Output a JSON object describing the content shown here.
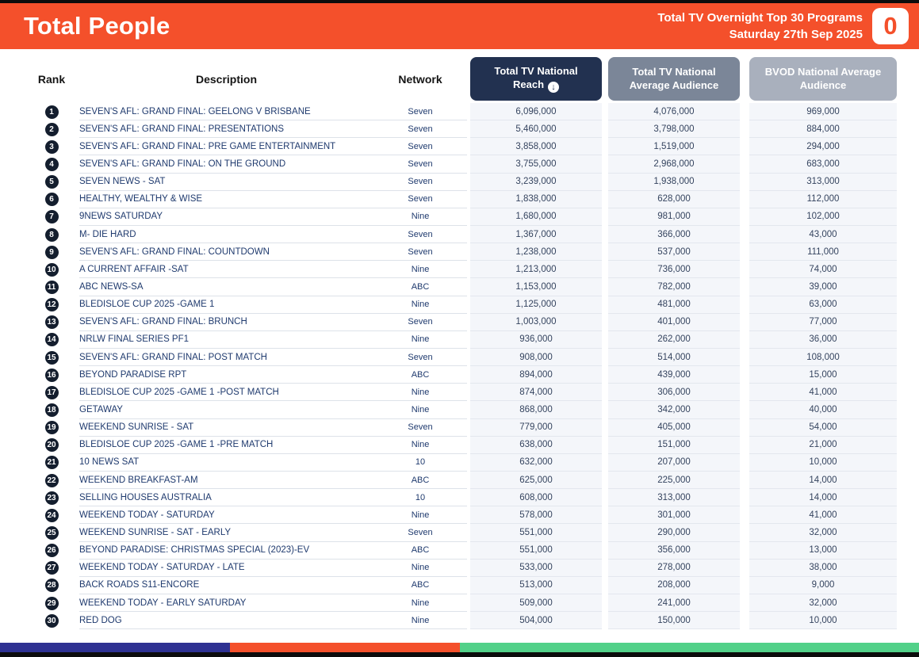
{
  "header": {
    "title": "Total People",
    "report_line1": "Total TV Overnight Top 30 Programs",
    "report_line2": "Saturday 27th Sep 2025",
    "logo_glyph": "0"
  },
  "table": {
    "columns": {
      "rank": "Rank",
      "description": "Description",
      "network": "Network",
      "reach": "Total TV National Reach",
      "avg": "Total TV National Average Audience",
      "bvod": "BVOD National Average Audience"
    },
    "sort_icon_glyph": "↓",
    "rows": [
      {
        "rank": "1",
        "description": "SEVEN'S AFL: GRAND FINAL: GEELONG V BRISBANE",
        "network": "Seven",
        "reach": "6,096,000",
        "avg": "4,076,000",
        "bvod": "969,000"
      },
      {
        "rank": "2",
        "description": "SEVEN'S AFL: GRAND FINAL: PRESENTATIONS",
        "network": "Seven",
        "reach": "5,460,000",
        "avg": "3,798,000",
        "bvod": "884,000"
      },
      {
        "rank": "3",
        "description": "SEVEN'S AFL: GRAND FINAL: PRE GAME ENTERTAINMENT",
        "network": "Seven",
        "reach": "3,858,000",
        "avg": "1,519,000",
        "bvod": "294,000"
      },
      {
        "rank": "4",
        "description": "SEVEN'S AFL: GRAND FINAL: ON THE GROUND",
        "network": "Seven",
        "reach": "3,755,000",
        "avg": "2,968,000",
        "bvod": "683,000"
      },
      {
        "rank": "5",
        "description": "SEVEN NEWS - SAT",
        "network": "Seven",
        "reach": "3,239,000",
        "avg": "1,938,000",
        "bvod": "313,000"
      },
      {
        "rank": "6",
        "description": "HEALTHY, WEALTHY & WISE",
        "network": "Seven",
        "reach": "1,838,000",
        "avg": "628,000",
        "bvod": "112,000"
      },
      {
        "rank": "7",
        "description": "9NEWS SATURDAY",
        "network": "Nine",
        "reach": "1,680,000",
        "avg": "981,000",
        "bvod": "102,000"
      },
      {
        "rank": "8",
        "description": "M- DIE HARD",
        "network": "Seven",
        "reach": "1,367,000",
        "avg": "366,000",
        "bvod": "43,000"
      },
      {
        "rank": "9",
        "description": "SEVEN'S AFL: GRAND FINAL: COUNTDOWN",
        "network": "Seven",
        "reach": "1,238,000",
        "avg": "537,000",
        "bvod": "111,000"
      },
      {
        "rank": "10",
        "description": "A CURRENT AFFAIR -SAT",
        "network": "Nine",
        "reach": "1,213,000",
        "avg": "736,000",
        "bvod": "74,000"
      },
      {
        "rank": "11",
        "description": "ABC NEWS-SA",
        "network": "ABC",
        "reach": "1,153,000",
        "avg": "782,000",
        "bvod": "39,000"
      },
      {
        "rank": "12",
        "description": "BLEDISLOE CUP 2025 -GAME 1",
        "network": "Nine",
        "reach": "1,125,000",
        "avg": "481,000",
        "bvod": "63,000"
      },
      {
        "rank": "13",
        "description": "SEVEN'S AFL: GRAND FINAL: BRUNCH",
        "network": "Seven",
        "reach": "1,003,000",
        "avg": "401,000",
        "bvod": "77,000"
      },
      {
        "rank": "14",
        "description": "NRLW FINAL SERIES PF1",
        "network": "Nine",
        "reach": "936,000",
        "avg": "262,000",
        "bvod": "36,000"
      },
      {
        "rank": "15",
        "description": "SEVEN'S AFL: GRAND FINAL: POST MATCH",
        "network": "Seven",
        "reach": "908,000",
        "avg": "514,000",
        "bvod": "108,000"
      },
      {
        "rank": "16",
        "description": "BEYOND PARADISE RPT",
        "network": "ABC",
        "reach": "894,000",
        "avg": "439,000",
        "bvod": "15,000"
      },
      {
        "rank": "17",
        "description": "BLEDISLOE CUP 2025 -GAME 1 -POST MATCH",
        "network": "Nine",
        "reach": "874,000",
        "avg": "306,000",
        "bvod": "41,000"
      },
      {
        "rank": "18",
        "description": "GETAWAY",
        "network": "Nine",
        "reach": "868,000",
        "avg": "342,000",
        "bvod": "40,000"
      },
      {
        "rank": "19",
        "description": "WEEKEND SUNRISE - SAT",
        "network": "Seven",
        "reach": "779,000",
        "avg": "405,000",
        "bvod": "54,000"
      },
      {
        "rank": "20",
        "description": "BLEDISLOE CUP 2025 -GAME 1 -PRE MATCH",
        "network": "Nine",
        "reach": "638,000",
        "avg": "151,000",
        "bvod": "21,000"
      },
      {
        "rank": "21",
        "description": "10 NEWS SAT",
        "network": "10",
        "reach": "632,000",
        "avg": "207,000",
        "bvod": "10,000"
      },
      {
        "rank": "22",
        "description": "WEEKEND BREAKFAST-AM",
        "network": "ABC",
        "reach": "625,000",
        "avg": "225,000",
        "bvod": "14,000"
      },
      {
        "rank": "23",
        "description": "SELLING HOUSES AUSTRALIA",
        "network": "10",
        "reach": "608,000",
        "avg": "313,000",
        "bvod": "14,000"
      },
      {
        "rank": "24",
        "description": "WEEKEND TODAY - SATURDAY",
        "network": "Nine",
        "reach": "578,000",
        "avg": "301,000",
        "bvod": "41,000"
      },
      {
        "rank": "25",
        "description": "WEEKEND SUNRISE - SAT - EARLY",
        "network": "Seven",
        "reach": "551,000",
        "avg": "290,000",
        "bvod": "32,000"
      },
      {
        "rank": "26",
        "description": "BEYOND PARADISE: CHRISTMAS SPECIAL (2023)-EV",
        "network": "ABC",
        "reach": "551,000",
        "avg": "356,000",
        "bvod": "13,000"
      },
      {
        "rank": "27",
        "description": "WEEKEND TODAY - SATURDAY - LATE",
        "network": "Nine",
        "reach": "533,000",
        "avg": "278,000",
        "bvod": "38,000"
      },
      {
        "rank": "28",
        "description": "BACK ROADS S11-ENCORE",
        "network": "ABC",
        "reach": "513,000",
        "avg": "208,000",
        "bvod": "9,000"
      },
      {
        "rank": "29",
        "description": "WEEKEND TODAY - EARLY SATURDAY",
        "network": "Nine",
        "reach": "509,000",
        "avg": "241,000",
        "bvod": "32,000"
      },
      {
        "rank": "30",
        "description": "RED DOG",
        "network": "Nine",
        "reach": "504,000",
        "avg": "150,000",
        "bvod": "10,000"
      }
    ]
  },
  "colors": {
    "accent_orange": "#f4502b",
    "header_navy": "#223150",
    "header_gray": "#7b8698",
    "header_lightgray": "#a9b0bd",
    "footer_navy": "#2e3192",
    "footer_green": "#52d189"
  },
  "footer": {
    "segments": [
      {
        "color": "#2e3192",
        "width": "25%"
      },
      {
        "color": "#f4502b",
        "width": "25%"
      },
      {
        "color": "#52d189",
        "width": "50%"
      }
    ]
  }
}
